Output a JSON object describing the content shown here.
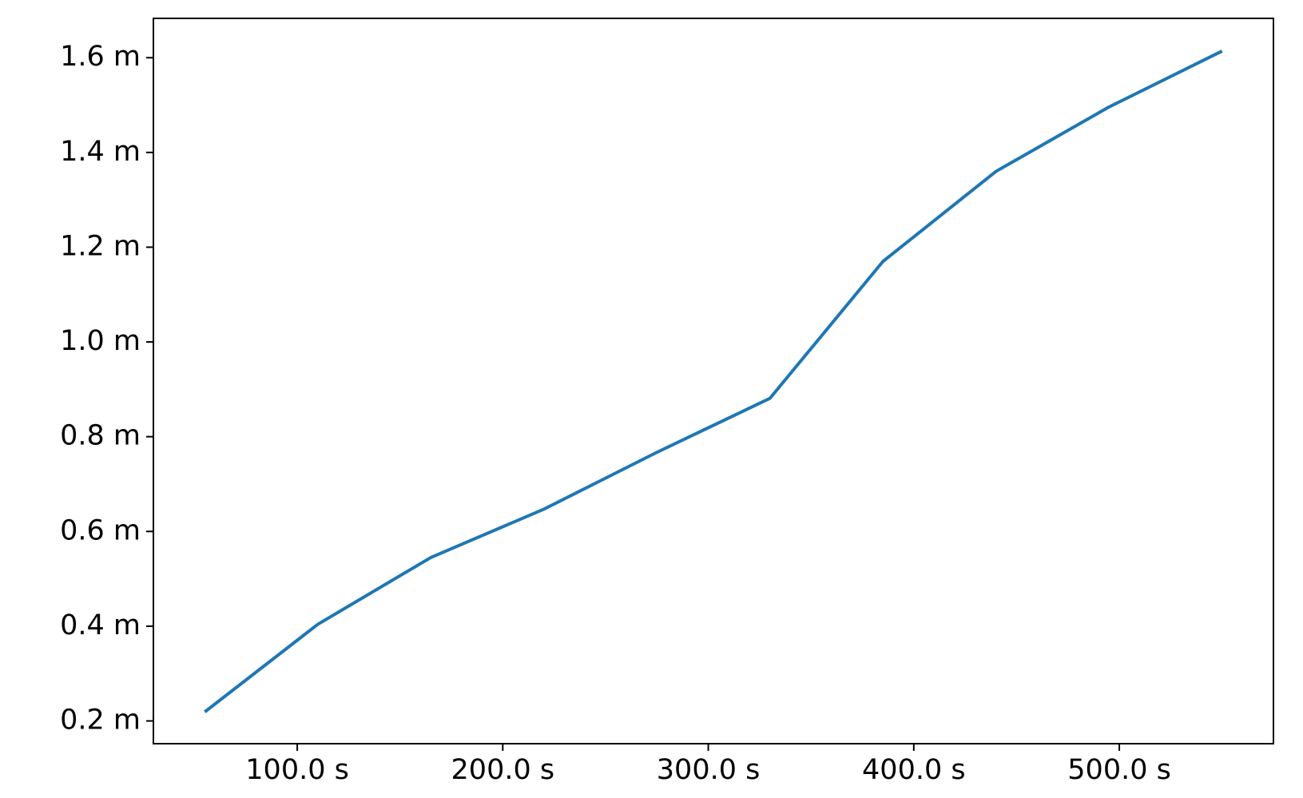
{
  "chart_data": {
    "type": "line",
    "x": [
      55,
      110,
      165,
      220,
      275,
      330,
      385,
      440,
      495,
      550
    ],
    "values": [
      0.219,
      0.404,
      0.545,
      0.647,
      0.767,
      0.881,
      1.17,
      1.36,
      1.496,
      1.614
    ],
    "color": "#1f77b4",
    "xlim": [
      30,
      575
    ],
    "ylim": [
      0.152,
      1.683
    ],
    "xticks": [
      {
        "value": 100,
        "label": "100.0 s"
      },
      {
        "value": 200,
        "label": "200.0 s"
      },
      {
        "value": 300,
        "label": "300.0 s"
      },
      {
        "value": 400,
        "label": "400.0 s"
      },
      {
        "value": 500,
        "label": "500.0 s"
      }
    ],
    "yticks": [
      {
        "value": 0.2,
        "label": "0.2 m"
      },
      {
        "value": 0.4,
        "label": "0.4 m"
      },
      {
        "value": 0.6,
        "label": "0.6 m"
      },
      {
        "value": 0.8,
        "label": "0.8 m"
      },
      {
        "value": 1.0,
        "label": "1.0 m"
      },
      {
        "value": 1.2,
        "label": "1.2 m"
      },
      {
        "value": 1.4,
        "label": "1.4 m"
      },
      {
        "value": 1.6,
        "label": "1.6 m"
      }
    ],
    "grid": false
  }
}
